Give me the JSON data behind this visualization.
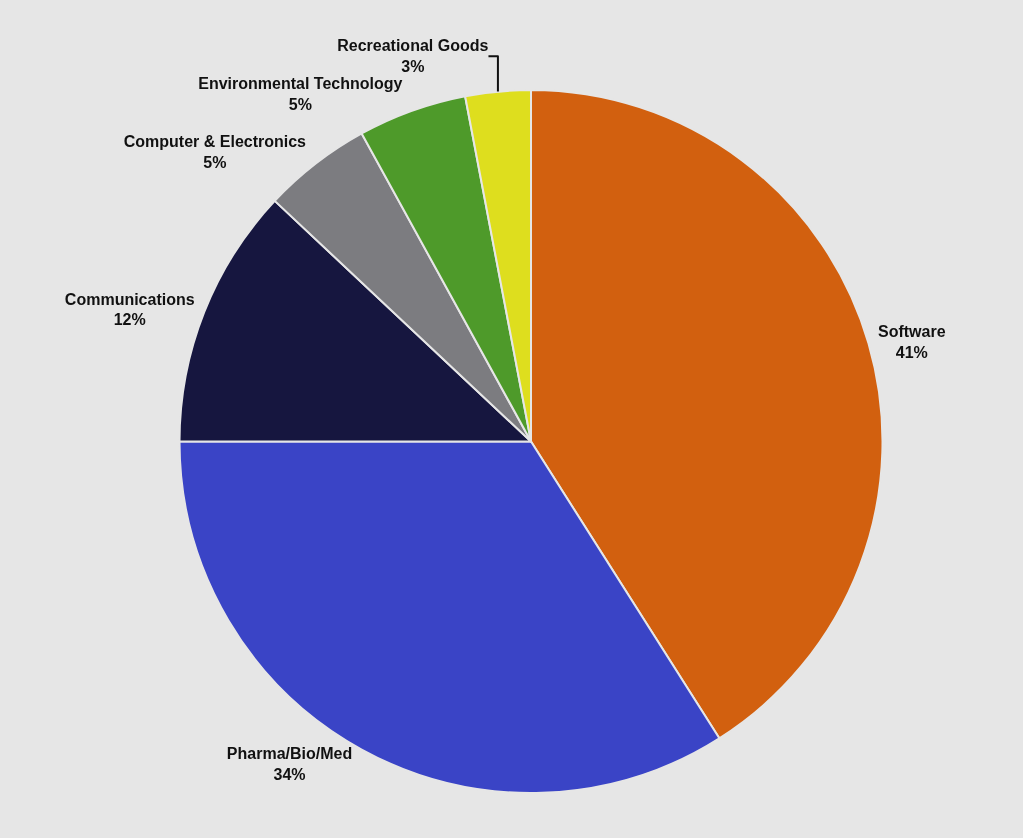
{
  "chart_data": {
    "type": "pie",
    "categories": [
      "Software",
      "Pharma/Bio/Med",
      "Communications",
      "Computer & Electronics",
      "Environmental Technology",
      "Recreational Goods"
    ],
    "values": [
      41,
      34,
      12,
      5,
      5,
      3
    ],
    "value_labels": [
      "41%",
      "34%",
      "12%",
      "5%",
      "5%",
      "3%"
    ],
    "colors": [
      "#d2600f",
      "#3a44c6",
      "#16163f",
      "#7c7c80",
      "#4e9a2a",
      "#dede1e"
    ],
    "legend": false
  }
}
